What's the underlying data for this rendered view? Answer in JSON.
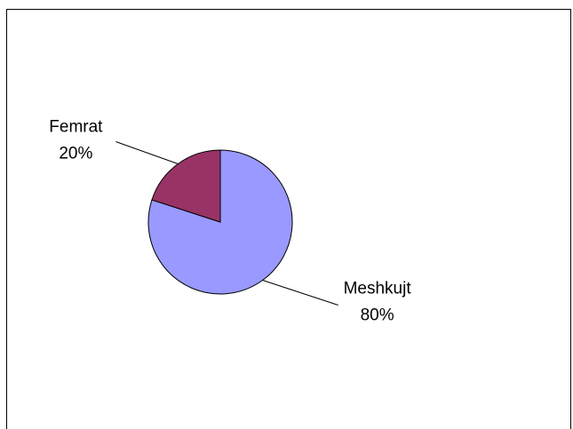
{
  "chart_data": {
    "type": "pie",
    "categories": [
      "Meshkujt",
      "Femrat"
    ],
    "values": [
      80,
      20
    ],
    "value_labels": [
      "80%",
      "20%"
    ],
    "colors": [
      "#9999ff",
      "#993366"
    ]
  }
}
